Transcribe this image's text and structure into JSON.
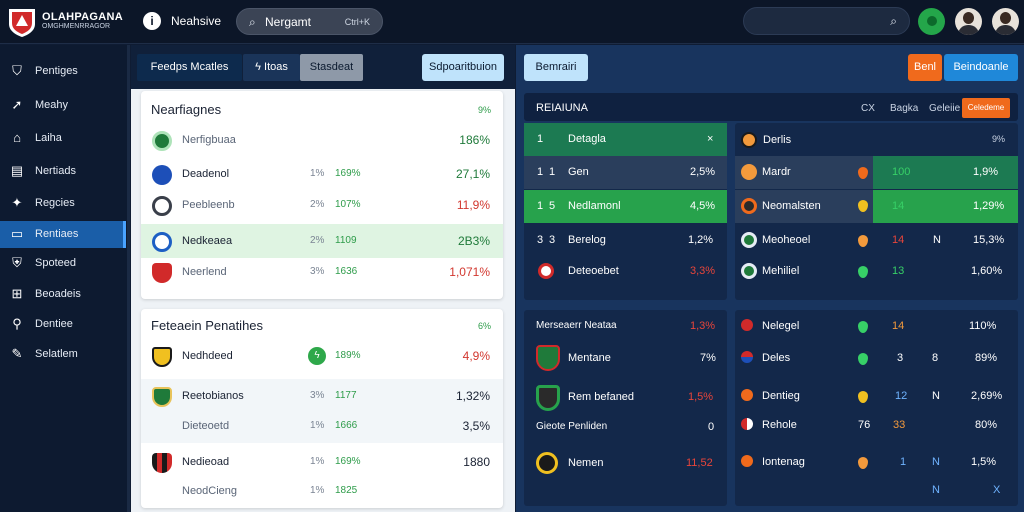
{
  "header": {
    "brand_line1": "OLAHPAGANA",
    "brand_line2": "OMGHMENRRAGOR",
    "title": "Neahsive",
    "search_value": "Nergamt",
    "search_shortcut": "Ctrl+K",
    "icons": [
      "logo-crest",
      "info-icon",
      "search-icon",
      "search-icon",
      "status-dot-icon",
      "user-avatar",
      "user-avatar"
    ]
  },
  "sidebar": {
    "items": [
      {
        "label": "Pentiges",
        "icon": "shield-icon",
        "active": false
      },
      {
        "label": "Meahy",
        "icon": "pin-icon",
        "active": false
      },
      {
        "label": "Laiha",
        "icon": "home-icon",
        "active": false
      },
      {
        "label": "Nertiads",
        "icon": "doc-icon",
        "active": false
      },
      {
        "label": "Regcies",
        "icon": "star-icon",
        "active": false
      },
      {
        "label": "Rentiaes",
        "icon": "tablet-icon",
        "active": true
      },
      {
        "label": "Spoteed",
        "icon": "shield-check-icon",
        "active": false
      },
      {
        "label": "Beoadeis",
        "icon": "gift-icon",
        "active": false
      },
      {
        "label": "Dentiee",
        "icon": "wrench-icon",
        "active": false
      },
      {
        "label": "Selatlem",
        "icon": "pen-icon",
        "active": false
      }
    ]
  },
  "left_tabs": {
    "seg1": "Feedps Mcatles",
    "seg2_icon": "lightning-icon",
    "seg2": "Itoas",
    "seg3": "Stasdeat",
    "action": "Sdpoaritbuion"
  },
  "card1": {
    "title": "Nearfiagnes",
    "pct": "9%",
    "rows": [
      {
        "name": "Nerfigbuaa",
        "pct": "",
        "green": "",
        "value": "186%"
      },
      {
        "name": "Deadenol",
        "pct": "1%",
        "green": "169%",
        "value": "27,1%"
      },
      {
        "name": "Peebleenb",
        "pct": "2%",
        "green": "107%",
        "value": "11,9%"
      },
      {
        "name": "Nedkeaea",
        "pct": "2%",
        "green": "1109",
        "value": "2B3%"
      },
      {
        "name": "Neerlend",
        "pct": "3%",
        "green": "1636",
        "value": "1,071%"
      }
    ]
  },
  "card2": {
    "title": "Feteaein Penatihes",
    "pct": "6%",
    "rows": [
      {
        "name": "Nedhdeed",
        "pct": "",
        "green": "189%",
        "value": "4,9%"
      },
      {
        "name": "Reetobianos",
        "pct": "3%",
        "green": "1177",
        "value": "1,32%"
      },
      {
        "name": "Dieteoetd",
        "pct": "1%",
        "green": "1666",
        "value": "3,5%"
      },
      {
        "name": "Nedieoad",
        "pct": "1%",
        "green": "169%",
        "value": "1880"
      },
      {
        "name": "NeodCieng",
        "pct": "1%",
        "green": "1825",
        "value": ""
      }
    ]
  },
  "right_header": {
    "btn1": "Bemrairi",
    "btn2": "Benl",
    "btn3": "Beindoanle"
  },
  "table_a": {
    "title": "REIAIUNA",
    "controls": [
      "CX",
      "Bagka",
      "Geleiie"
    ],
    "action": "Celedeme",
    "rows": [
      {
        "rank": "1",
        "pos": "",
        "name": "Detagla",
        "value": "×"
      },
      {
        "rank": "1",
        "pos": "1",
        "name": "Gen",
        "value": "2,5%"
      },
      {
        "rank": "1",
        "pos": "5",
        "name": "Nedlamonl",
        "value": "4,5%"
      },
      {
        "rank": "3",
        "pos": "3",
        "name": "Berelog",
        "value": "1,2%"
      },
      {
        "rank": "",
        "pos": "",
        "name": "Deteoebet",
        "value": "3,3%"
      }
    ]
  },
  "table_b": {
    "title": "Derlis",
    "pct": "9%",
    "rows": [
      {
        "name": "Mardr",
        "n": "100",
        "v": "1,9%"
      },
      {
        "name": "Neomalsten",
        "n": "14",
        "v": "1,29%"
      },
      {
        "name": "Meoheoel",
        "n": "14",
        "m": "N",
        "v": "15,3%"
      },
      {
        "name": "Mehiliel",
        "n": "13",
        "v": "1,60%"
      }
    ]
  },
  "table_c": {
    "title": "Merseaerr Neataa",
    "pct": "1,3%",
    "rows": [
      {
        "name": "Mentane",
        "v": "7%"
      },
      {
        "name": "Rem befaned",
        "v": "1,5%"
      },
      {
        "name": "Gieote Penliden",
        "v": "0"
      },
      {
        "name": "Nemen",
        "v": "11,52"
      }
    ]
  },
  "table_d": {
    "rows": [
      {
        "name": "Nelegel",
        "n": "14",
        "m": "",
        "v": "110%"
      },
      {
        "name": "Deles",
        "n": "3",
        "m": "8",
        "v": "89%"
      },
      {
        "name": "Dentieg",
        "n": "12",
        "m": "N",
        "v": "2,69%"
      },
      {
        "name": "Rehole",
        "n": "76",
        "m": "33",
        "v": "80%"
      },
      {
        "name": "Iontenag",
        "n": "1",
        "m": "N",
        "v": "1,5%"
      }
    ],
    "footer_a": "N",
    "footer_b": "X"
  },
  "colors": {
    "accent_blue": "#1a5ea8",
    "positive_green": "#2e9c4a",
    "negative_red": "#d2372f",
    "warning_orange": "#f06a1c"
  }
}
